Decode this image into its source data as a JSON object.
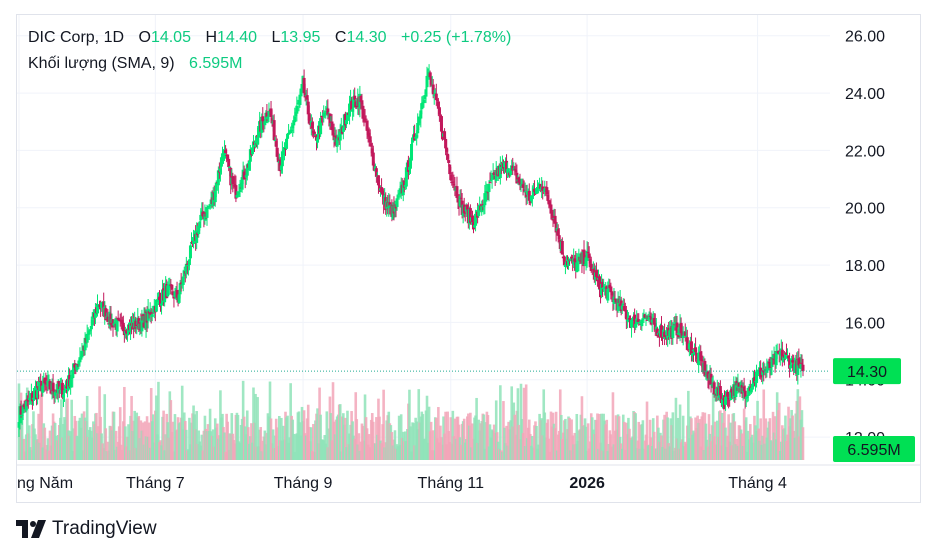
{
  "legend": {
    "symbol": "DIC Corp, 1D",
    "open_label": "O",
    "open_value": "14.05",
    "high_label": "H",
    "high_value": "14.40",
    "low_label": "L",
    "low_value": "13.95",
    "close_label": "C",
    "close_value": "14.30",
    "change": "+0.25 (+1.78%)",
    "volume_label": "Khối lượng (SMA, 9)",
    "volume_value": "6.595M"
  },
  "price_tag": "14.30",
  "volume_tag": "6.595M",
  "brand": "TradingView",
  "colors": {
    "up": "#22ab94",
    "up_bright": "#00e676",
    "down": "#e8305a",
    "down_dark": "#c2185b",
    "tag_green": "#00e054",
    "grid": "#f0f3fa",
    "price_line": "#22ab94"
  },
  "chart_data": {
    "type": "candlestick",
    "y_ticks": [
      "12.00",
      "14.00",
      "16.00",
      "18.00",
      "20.00",
      "22.00",
      "24.00",
      "26.00"
    ],
    "x_ticks": [
      "ng Năm",
      "Tháng 7",
      "Tháng 9",
      "Tháng 11",
      "2026",
      "Tháng 4"
    ],
    "ylim": [
      11.2,
      26.2
    ],
    "last_close": 14.3,
    "path": [
      [
        "ng Năm",
        12.8
      ],
      [
        "",
        13.3
      ],
      [
        "",
        13.8
      ],
      [
        "",
        13.7
      ],
      [
        "",
        13.6
      ],
      [
        "",
        14.5
      ],
      [
        "",
        15.4
      ],
      [
        "",
        16.7
      ],
      [
        "",
        16.1
      ],
      [
        "",
        15.8
      ],
      [
        "",
        15.9
      ],
      [
        "",
        16.0
      ],
      [
        "Tháng 7",
        16.6
      ],
      [
        "",
        17.1
      ],
      [
        "",
        16.9
      ],
      [
        "",
        18.3
      ],
      [
        "",
        19.6
      ],
      [
        "",
        20.2
      ],
      [
        "",
        22.0
      ],
      [
        "",
        20.5
      ],
      [
        "",
        21.3
      ],
      [
        "",
        22.6
      ],
      [
        "",
        23.5
      ],
      [
        "",
        21.5
      ],
      [
        "",
        22.8
      ],
      [
        "Tháng 9",
        24.2
      ],
      [
        "",
        22.3
      ],
      [
        "",
        23.4
      ],
      [
        "",
        22.2
      ],
      [
        "",
        23.5
      ],
      [
        "",
        23.8
      ],
      [
        "",
        22.0
      ],
      [
        "",
        20.3
      ],
      [
        "",
        19.8
      ],
      [
        "",
        21.0
      ],
      [
        "",
        22.8
      ],
      [
        "",
        24.7
      ],
      [
        "",
        23.2
      ],
      [
        "Tháng 11",
        21.2
      ],
      [
        "",
        20.0
      ],
      [
        "",
        19.5
      ],
      [
        "",
        20.3
      ],
      [
        "",
        21.2
      ],
      [
        "",
        21.5
      ],
      [
        "",
        20.9
      ],
      [
        "",
        20.3
      ],
      [
        "",
        20.9
      ],
      [
        "",
        19.8
      ],
      [
        "",
        18.2
      ],
      [
        "",
        18.0
      ],
      [
        "2026",
        18.3
      ],
      [
        "",
        17.3
      ],
      [
        "",
        17.0
      ],
      [
        "",
        16.5
      ],
      [
        "",
        16.0
      ],
      [
        "",
        16.2
      ],
      [
        "",
        15.8
      ],
      [
        "",
        15.6
      ],
      [
        "",
        15.8
      ],
      [
        "",
        15.2
      ],
      [
        "",
        14.6
      ],
      [
        "",
        13.8
      ],
      [
        "",
        13.3
      ],
      [
        "",
        13.7
      ],
      [
        "",
        13.6
      ],
      [
        "Tháng 4",
        14.2
      ],
      [
        "",
        14.4
      ],
      [
        "",
        14.9
      ],
      [
        "",
        14.6
      ],
      [
        "",
        14.3
      ]
    ],
    "volume_last": "6.595M"
  }
}
